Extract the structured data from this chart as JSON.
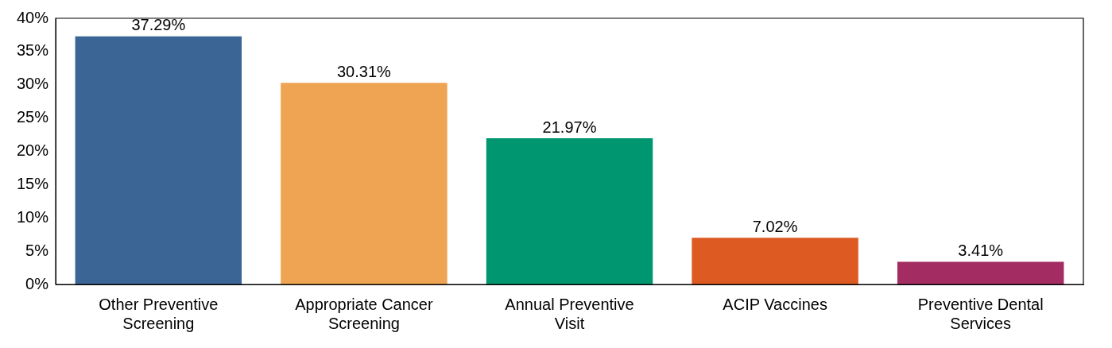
{
  "chart_data": {
    "type": "bar",
    "categories": [
      "Other Preventive Screening",
      "Appropriate Cancer Screening",
      "Annual Preventive Visit",
      "ACIP Vaccines",
      "Preventive Dental Services"
    ],
    "values": [
      37.29,
      30.31,
      21.97,
      7.02,
      3.41
    ],
    "colors": [
      "#3a6594",
      "#efa453",
      "#009670",
      "#dd5b22",
      "#a32d62"
    ],
    "value_labels": [
      "37.29%",
      "30.31%",
      "21.97%",
      "7.02%",
      "3.41%"
    ],
    "ylim": [
      0,
      40
    ],
    "yticks": [
      {
        "value": 0,
        "label": "0%"
      },
      {
        "value": 5,
        "label": "5%"
      },
      {
        "value": 10,
        "label": "10%"
      },
      {
        "value": 15,
        "label": "15%"
      },
      {
        "value": 20,
        "label": "20%"
      },
      {
        "value": 25,
        "label": "25%"
      },
      {
        "value": 30,
        "label": "30%"
      },
      {
        "value": 35,
        "label": "35%"
      },
      {
        "value": 40,
        "label": "40%"
      }
    ],
    "grid": false,
    "legend": false
  }
}
